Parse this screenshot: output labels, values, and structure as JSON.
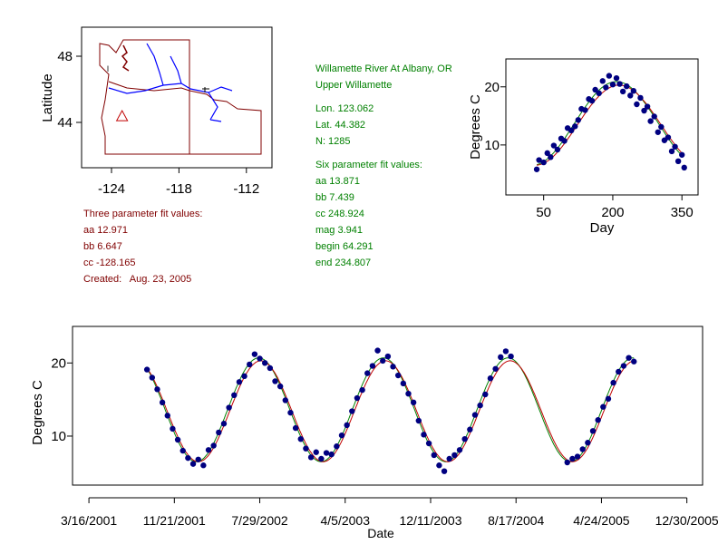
{
  "station": {
    "name": "Willamette River At Albany, OR",
    "basin": "Upper Willamette",
    "lon": "Lon. 123.062",
    "lat": "Lat. 44.382",
    "n": "N: 1285"
  },
  "six_param": {
    "title": "Six parameter fit values:",
    "aa": "aa 13.871",
    "bb": "bb 7.439",
    "cc": "cc 248.924",
    "mag": "mag 3.941",
    "begin": "begin 64.291",
    "end": "end 234.807"
  },
  "three_param": {
    "title": "Three parameter fit values:",
    "aa": "aa 12.971",
    "bb": "bb 6.647",
    "cc": "cc -128.165",
    "created": "Created:   Aug. 23, 2005"
  },
  "colors": {
    "points": "#000080",
    "fit_green": "#008000",
    "fit_red": "#c00000",
    "outline": "#800000",
    "rivers": "#0000ff"
  },
  "chart_data": [
    {
      "type": "map",
      "ylabel": "Latitude",
      "xticks": [
        "-124",
        "-118",
        "-112"
      ],
      "xtick_values": [
        -124,
        -118,
        -112
      ],
      "yticks": [
        "48",
        "44"
      ],
      "ytick_values": [
        48,
        44
      ],
      "station_marker": {
        "lon": -123.06,
        "lat": 44.38,
        "symbol": "triangle"
      }
    },
    {
      "type": "scatter",
      "xlabel": "Day",
      "ylabel": "Degrees C",
      "xticks": [
        "50",
        "200",
        "350"
      ],
      "xtick_values": [
        50,
        200,
        350
      ],
      "yticks": [
        "10",
        "20"
      ],
      "ytick_values": [
        10,
        20
      ],
      "xlim": [
        -32,
        385
      ],
      "ylim": [
        1.4,
        24.8
      ],
      "points": [
        [
          35,
          5.8
        ],
        [
          40,
          7.4
        ],
        [
          50,
          7.0
        ],
        [
          58,
          8.6
        ],
        [
          65,
          7.9
        ],
        [
          72,
          9.9
        ],
        [
          80,
          9.2
        ],
        [
          88,
          11.1
        ],
        [
          95,
          10.7
        ],
        [
          102,
          12.9
        ],
        [
          110,
          12.5
        ],
        [
          118,
          13.2
        ],
        [
          125,
          14.3
        ],
        [
          132,
          16.2
        ],
        [
          140,
          16.0
        ],
        [
          148,
          17.9
        ],
        [
          155,
          17.6
        ],
        [
          162,
          19.5
        ],
        [
          170,
          18.9
        ],
        [
          178,
          21.0
        ],
        [
          185,
          19.9
        ],
        [
          192,
          21.9
        ],
        [
          200,
          20.4
        ],
        [
          208,
          21.5
        ],
        [
          215,
          20.5
        ],
        [
          222,
          19.2
        ],
        [
          230,
          20.1
        ],
        [
          238,
          18.5
        ],
        [
          245,
          19.3
        ],
        [
          252,
          17.0
        ],
        [
          260,
          18.1
        ],
        [
          268,
          15.9
        ],
        [
          275,
          16.6
        ],
        [
          282,
          14.1
        ],
        [
          290,
          14.9
        ],
        [
          298,
          12.2
        ],
        [
          305,
          13.1
        ],
        [
          312,
          10.8
        ],
        [
          320,
          11.3
        ],
        [
          328,
          8.9
        ],
        [
          335,
          9.7
        ],
        [
          342,
          7.2
        ],
        [
          350,
          8.3
        ],
        [
          355,
          6.1
        ]
      ],
      "fits": [
        {
          "name": "six parameter fit",
          "mean": 13.7,
          "amplitude": 7.2,
          "peak_day": 208
        },
        {
          "name": "three parameter fit",
          "mean": 13.4,
          "amplitude": 6.9,
          "peak_day": 214
        }
      ]
    },
    {
      "type": "line",
      "xlabel": "Date",
      "ylabel": "Degrees C",
      "x_units": "days since 3/16/2001",
      "xticks": [
        "3/16/2001",
        "11/21/2001",
        "7/29/2002",
        "4/5/2003",
        "12/11/2003",
        "8/17/2004",
        "4/24/2005",
        "12/30/2005"
      ],
      "xtick_values": [
        0,
        250,
        500,
        750,
        1000,
        1250,
        1500,
        1750
      ],
      "yticks": [
        "10",
        "20"
      ],
      "ytick_values": [
        10,
        20
      ],
      "xlim": [
        -48,
        1796
      ],
      "ylim": [
        3.3,
        25
      ],
      "points": [
        [
          170,
          19.1
        ],
        [
          185,
          18.0
        ],
        [
          200,
          16.4
        ],
        [
          215,
          14.6
        ],
        [
          230,
          12.8
        ],
        [
          245,
          11.0
        ],
        [
          260,
          9.5
        ],
        [
          275,
          8.0
        ],
        [
          290,
          7.0
        ],
        [
          305,
          6.2
        ],
        [
          320,
          6.8
        ],
        [
          335,
          6.0
        ],
        [
          350,
          8.1
        ],
        [
          365,
          8.7
        ],
        [
          380,
          10.5
        ],
        [
          395,
          11.7
        ],
        [
          410,
          13.9
        ],
        [
          425,
          15.6
        ],
        [
          440,
          17.4
        ],
        [
          455,
          18.2
        ],
        [
          470,
          19.8
        ],
        [
          485,
          21.2
        ],
        [
          500,
          20.6
        ],
        [
          515,
          20.0
        ],
        [
          530,
          19.3
        ],
        [
          545,
          17.5
        ],
        [
          560,
          16.8
        ],
        [
          575,
          14.9
        ],
        [
          590,
          13.2
        ],
        [
          605,
          11.1
        ],
        [
          620,
          9.6
        ],
        [
          635,
          8.3
        ],
        [
          650,
          7.1
        ],
        [
          665,
          7.8
        ],
        [
          680,
          6.9
        ],
        [
          695,
          7.7
        ],
        [
          710,
          7.5
        ],
        [
          725,
          8.6
        ],
        [
          740,
          10.1
        ],
        [
          755,
          11.5
        ],
        [
          770,
          13.4
        ],
        [
          785,
          15.2
        ],
        [
          800,
          16.3
        ],
        [
          815,
          18.6
        ],
        [
          830,
          19.6
        ],
        [
          845,
          21.7
        ],
        [
          860,
          20.3
        ],
        [
          875,
          20.9
        ],
        [
          890,
          19.5
        ],
        [
          905,
          18.3
        ],
        [
          920,
          17.2
        ],
        [
          935,
          15.8
        ],
        [
          950,
          14.6
        ],
        [
          965,
          12.1
        ],
        [
          980,
          10.2
        ],
        [
          995,
          9.0
        ],
        [
          1010,
          7.4
        ],
        [
          1025,
          6.0
        ],
        [
          1040,
          5.2
        ],
        [
          1055,
          6.9
        ],
        [
          1070,
          7.4
        ],
        [
          1085,
          8.1
        ],
        [
          1100,
          9.6
        ],
        [
          1115,
          10.9
        ],
        [
          1130,
          12.9
        ],
        [
          1145,
          14.2
        ],
        [
          1160,
          15.7
        ],
        [
          1175,
          17.9
        ],
        [
          1190,
          19.2
        ],
        [
          1205,
          20.8
        ],
        [
          1220,
          21.6
        ],
        [
          1235,
          20.9
        ],
        [
          1400,
          6.4
        ],
        [
          1415,
          6.9
        ],
        [
          1430,
          7.2
        ],
        [
          1445,
          8.2
        ],
        [
          1460,
          9.1
        ],
        [
          1475,
          10.7
        ],
        [
          1490,
          12.2
        ],
        [
          1505,
          14.0
        ],
        [
          1520,
          15.1
        ],
        [
          1535,
          17.3
        ],
        [
          1550,
          18.8
        ],
        [
          1565,
          19.6
        ],
        [
          1580,
          20.7
        ],
        [
          1595,
          20.2
        ]
      ],
      "fits": [
        {
          "name": "six parameter fit",
          "mean": 13.6,
          "amplitude": 7.1,
          "peak_day": 497
        },
        {
          "name": "three parameter fit",
          "mean": 13.4,
          "amplitude": 6.9,
          "peak_day": 503
        }
      ]
    }
  ]
}
